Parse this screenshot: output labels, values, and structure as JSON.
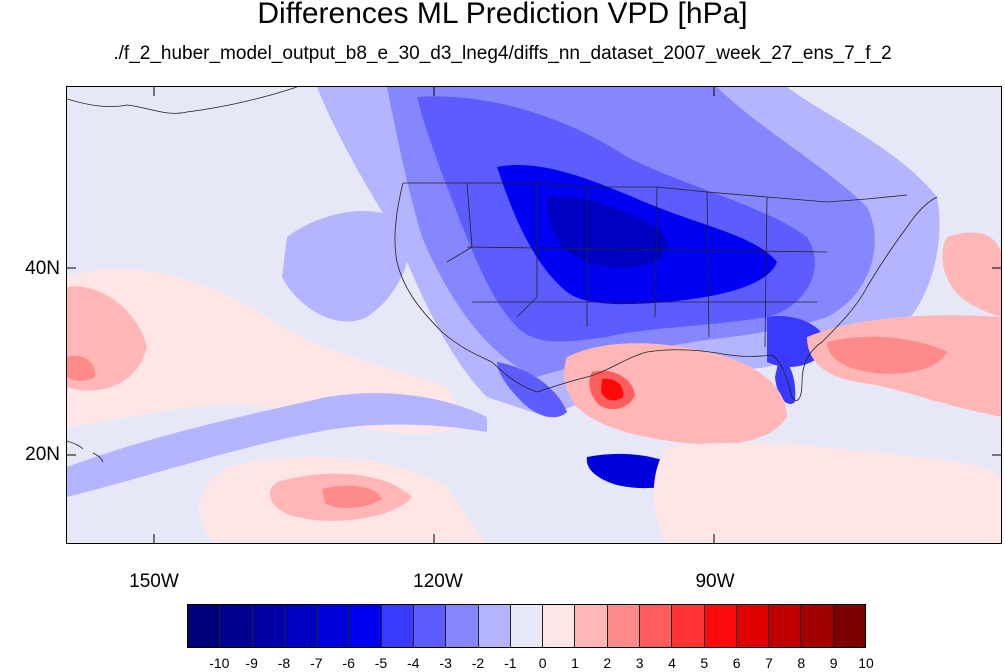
{
  "title": "Differences ML Prediction VPD [hPa]",
  "subtitle": "./f_2_huber_model_output_b8_e_30_d3_lneg4/diffs_nn_dataset_2007_week_27_ens_7_f_2",
  "map": {
    "lon_labels": [
      "150W",
      "120W",
      "90W"
    ],
    "lat_labels": [
      "40N",
      "20N"
    ]
  },
  "colorbar": {
    "labels": [
      "-10",
      "-9",
      "-8",
      "-7",
      "-6",
      "-5",
      "-4",
      "-3",
      "-2",
      "-1",
      "0",
      "1",
      "2",
      "3",
      "4",
      "5",
      "6",
      "7",
      "8",
      "9",
      "10"
    ],
    "colors": [
      "#00007a",
      "#000090",
      "#0000a8",
      "#0000c2",
      "#0000dc",
      "#0000f5",
      "#3a3aff",
      "#5c5cff",
      "#8686ff",
      "#b4b4ff",
      "#e6e8f8",
      "#ffe6e6",
      "#ffb6b6",
      "#ff8a8a",
      "#ff5e5e",
      "#ff3434",
      "#ff0a0a",
      "#e00000",
      "#c00000",
      "#a00000",
      "#7a0000"
    ]
  }
}
